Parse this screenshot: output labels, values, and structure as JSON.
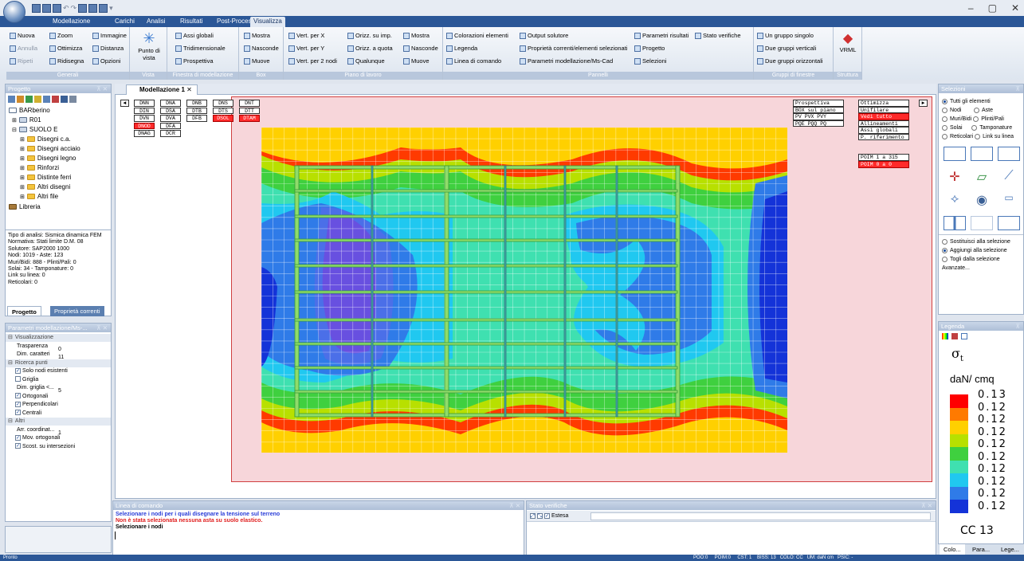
{
  "ribbon_tabs": [
    "Modellazione",
    "Carichi",
    "Analisi",
    "Risultati",
    "Post-Processor",
    "Visualizza"
  ],
  "active_tab": "Visualizza",
  "window_controls": [
    "–",
    "▢",
    "✕"
  ],
  "ribbon": {
    "generali": {
      "label": "Generali",
      "items": [
        "Nuova",
        "Zoom",
        "Immagine",
        "Annulla",
        "Ottimizza",
        "Distanza",
        "Ripeti",
        "Ridisegna",
        "Opzioni"
      ]
    },
    "vista": {
      "label": "Vista",
      "big": "Punto di vista"
    },
    "finestra": {
      "label": "Finestra di modellazione",
      "items": [
        "Assi globali",
        "Tridimensionale",
        "Prospettiva"
      ]
    },
    "box": {
      "label": "Box",
      "items": [
        "Mostra",
        "Nasconde",
        "Muove"
      ]
    },
    "piano": {
      "label": "Piano di lavoro",
      "items": [
        "Vert. per X",
        "Vert. per Y",
        "Vert. per 2 nodi",
        "Orizz. su imp.",
        "Orizz. a quota",
        "Qualunque",
        "Mostra",
        "Nasconde",
        "Muove"
      ]
    },
    "pannelli": {
      "label": "Pannelli",
      "items": [
        "Colorazioni elementi",
        "Legenda",
        "Linea di comando",
        "Output solutore",
        "Proprietà correnti/elementi selezionati",
        "Parametri modellazione/Ms-Cad",
        "Parametri risultati",
        "Stato verifiche",
        "Progetto",
        "Selezioni"
      ]
    },
    "gruppi": {
      "label": "Gruppi di finestre",
      "items": [
        "Un gruppo singolo",
        "Due gruppi verticali",
        "Due gruppi orizzontali"
      ]
    },
    "struttura": {
      "label": "Struttura",
      "big": "VRML"
    }
  },
  "progetto": {
    "title": "Progetto",
    "tree": [
      "BARberino",
      "R01",
      "SUOLO E",
      "Disegni c.a.",
      "Disegni acciaio",
      "Disegni legno",
      "Rinforzi",
      "Distinte ferri",
      "Altri disegni",
      "Altri file",
      "Libreria"
    ],
    "info": [
      "Tipo di analisi: Sismica dinamica FEM",
      "Normativa: Stati limite D.M. 08",
      "Solutore: SAP2000 1000",
      "Nodi: 1019 - Aste: 123",
      "Muri/Bidi: 888 - Plinti/Pali: 0",
      "Solai: 34 - Tamponature: 0",
      "Link su linea: 0",
      "Reticolari: 0"
    ],
    "tabs": [
      "Progetto",
      "Proprietà correnti"
    ]
  },
  "parametri": {
    "title": "Parametri modellazione/Ms-...",
    "rows": [
      {
        "t": "sec",
        "l": "Visualizzazione"
      },
      {
        "t": "val",
        "l": "Trasparenza",
        "v": "0"
      },
      {
        "t": "val",
        "l": "Dim. caratteri",
        "v": "11"
      },
      {
        "t": "sec",
        "l": "Ricerca punti"
      },
      {
        "t": "chk",
        "l": "Solo nodi esistenti",
        "c": true
      },
      {
        "t": "chk",
        "l": "Griglia",
        "c": false
      },
      {
        "t": "val",
        "l": "Dim. griglia <...",
        "v": "5"
      },
      {
        "t": "chk",
        "l": "Ortogonali",
        "c": true
      },
      {
        "t": "chk",
        "l": "Perpendicolari",
        "c": true
      },
      {
        "t": "chk",
        "l": "Centrali",
        "c": true
      },
      {
        "t": "sec",
        "l": "Altri"
      },
      {
        "t": "val",
        "l": "Arr. coordinat...",
        "v": "1"
      },
      {
        "t": "chk",
        "l": "Mov. ortogonali",
        "c": true
      },
      {
        "t": "chk",
        "l": "Scost. su intersezioni",
        "c": true
      }
    ]
  },
  "document_tab": "Modellazione 1",
  "view_buttons_left": [
    [
      "DNN",
      "DNA",
      "DNB",
      "DNS",
      "DNT"
    ],
    [
      "DIN",
      "DSA",
      "DTB",
      "DTS",
      "DTT"
    ],
    [
      "DVN",
      "DVA",
      "DFB",
      "DSOL",
      "DTAM"
    ],
    [
      "DNOD",
      "DFA"
    ],
    [
      "DNAG",
      "DCR"
    ]
  ],
  "view_buttons_right": {
    "col1": [
      "Prospettiva",
      "BOX sul piano",
      "PV  PVX  PVY",
      "PQE  PQQ  PQ"
    ],
    "col2": [
      "Ottimizza",
      "Unifilare",
      "Vedi tutto",
      "Allineamenti",
      "Assi globali",
      "P. riferimento"
    ],
    "poim": [
      "POIM   1  a  315",
      "POIM   0  a     0"
    ]
  },
  "comando": {
    "title": "Linea di comando",
    "lines": [
      "Selezionare i nodi per i quali disegnare la tensione sul terreno",
      "Non è stata selezionata nessuna asta su suolo elastico.",
      "Selezionare i nodi"
    ]
  },
  "stato": {
    "title": "Stato verifiche",
    "estesa": "Estesa"
  },
  "selezioni": {
    "title": "Selezioni",
    "opts": [
      "Tutti gli elementi",
      "Nodi",
      "Aste",
      "Muri/Bidi",
      "Plinti/Pali",
      "Solai",
      "Tamponature",
      "Reticolari",
      "Link su linea"
    ],
    "modes": [
      "Sostituisci alla selezione",
      "Aggiungi alla selezione",
      "Togli dalla selezione"
    ],
    "avanzate": "Avanzate..."
  },
  "legenda": {
    "title": "Legenda",
    "symbol": "σ",
    "subscript": "t",
    "unit": "daN/ cmq",
    "values": [
      "0.13",
      "0.12",
      "0.12",
      "0.12",
      "0.12",
      "0.12",
      "0.12",
      "0.12",
      "0.12",
      "0.12"
    ],
    "colors": [
      "#ff0000",
      "#ff7a00",
      "#ffd000",
      "#b8e000",
      "#3fd03f",
      "#3fe0b0",
      "#20c8f0",
      "#2f7be8",
      "#1433d8"
    ],
    "cc": "CC  13"
  },
  "bottom_tabs": [
    "Colo...",
    "Para...",
    "Lege..."
  ],
  "status": {
    "left": "Pronto",
    "right": "POO:0     POIM:0     CST: 1    BISS: 13   COLO: CC   UM: daN cm   PSIC: -"
  }
}
